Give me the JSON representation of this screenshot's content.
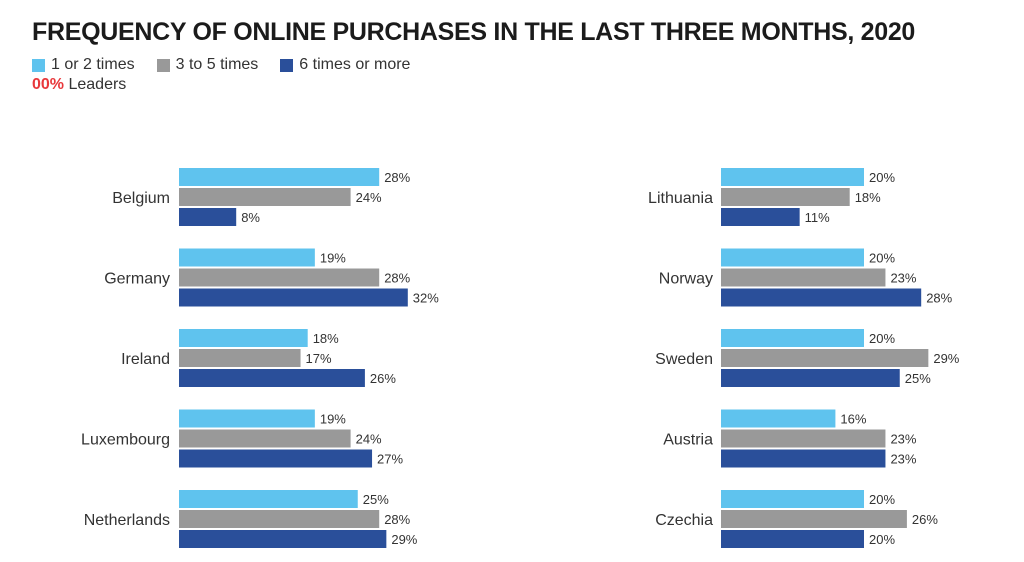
{
  "title": "FREQUENCY OF ONLINE PURCHASES IN THE LAST THREE MONTHS, 2020",
  "legend": {
    "items": [
      {
        "label": "1 or 2 times",
        "color": "#5fc3ee"
      },
      {
        "label": "3 to 5 times",
        "color": "#999999"
      },
      {
        "label": "6 times or more",
        "color": "#2a4f9a"
      }
    ],
    "leaders_value": "00%",
    "leaders_label": "Leaders"
  },
  "chart_data": [
    {
      "type": "bar",
      "orientation": "horizontal",
      "categories": [
        "Belgium",
        "Germany",
        "Ireland",
        "Luxembourg",
        "Netherlands"
      ],
      "series": [
        {
          "name": "1 or 2 times",
          "values": [
            28,
            19,
            18,
            19,
            25
          ]
        },
        {
          "name": "3 to 5 times",
          "values": [
            24,
            28,
            17,
            24,
            28
          ]
        },
        {
          "name": "6 times or more",
          "values": [
            8,
            32,
            26,
            27,
            29
          ]
        }
      ],
      "value_labels": [
        [
          "28%",
          "24%",
          "8%"
        ],
        [
          "19%",
          "28%",
          "32%"
        ],
        [
          "18%",
          "17%",
          "26%"
        ],
        [
          "19%",
          "24%",
          "27%"
        ],
        [
          "25%",
          "28%",
          "29%"
        ]
      ],
      "unit": "%"
    },
    {
      "type": "bar",
      "orientation": "horizontal",
      "categories": [
        "Lithuania",
        "Norway",
        "Sweden",
        "Austria",
        "Czechia"
      ],
      "series": [
        {
          "name": "1 or 2 times",
          "values": [
            20,
            20,
            20,
            16,
            20
          ]
        },
        {
          "name": "3 to 5 times",
          "values": [
            18,
            23,
            29,
            23,
            26
          ]
        },
        {
          "name": "6 times or more",
          "values": [
            11,
            28,
            25,
            23,
            20
          ]
        }
      ],
      "value_labels": [
        [
          "20%",
          "18%",
          "11%"
        ],
        [
          "20%",
          "23%",
          "28%"
        ],
        [
          "20%",
          "29%",
          "25%"
        ],
        [
          "16%",
          "23%",
          "23%"
        ],
        [
          "20%",
          "26%",
          "20%"
        ]
      ],
      "unit": "%"
    }
  ]
}
